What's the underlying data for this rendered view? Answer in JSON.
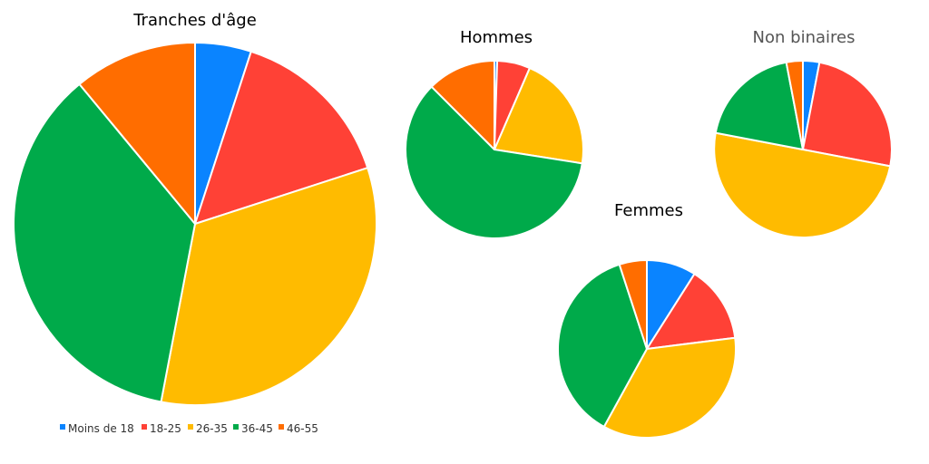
{
  "colors": {
    "Moins de 18": "#0a84ff",
    "18-25": "#ff4136",
    "26-35": "#ffbb00",
    "36-45": "#00aa4a",
    "46-55": "#ff6d00"
  },
  "legend": [
    "Moins de 18",
    "18-25",
    "26-35",
    "36-45",
    "46-55"
  ],
  "chart_data": [
    {
      "type": "pie",
      "title": "Tranches d'âge",
      "categories": [
        "Moins de 18",
        "18-25",
        "26-35",
        "36-45",
        "46-55"
      ],
      "values": [
        5,
        15,
        33,
        36,
        11
      ],
      "legend_position": "bottom"
    },
    {
      "type": "pie",
      "title": "Hommes",
      "categories": [
        "Moins de 18",
        "18-25",
        "26-35",
        "36-45",
        "46-55"
      ],
      "values": [
        0.5,
        6,
        21,
        60,
        12.5
      ]
    },
    {
      "type": "pie",
      "title": "Non binaires",
      "categories": [
        "Moins de 18",
        "18-25",
        "26-35",
        "36-45",
        "46-55"
      ],
      "values": [
        3,
        25,
        50,
        19,
        3
      ]
    },
    {
      "type": "pie",
      "title": "Femmes",
      "categories": [
        "Moins de 18",
        "18-25",
        "26-35",
        "36-45",
        "46-55"
      ],
      "values": [
        9,
        14,
        35,
        37,
        5
      ]
    }
  ]
}
